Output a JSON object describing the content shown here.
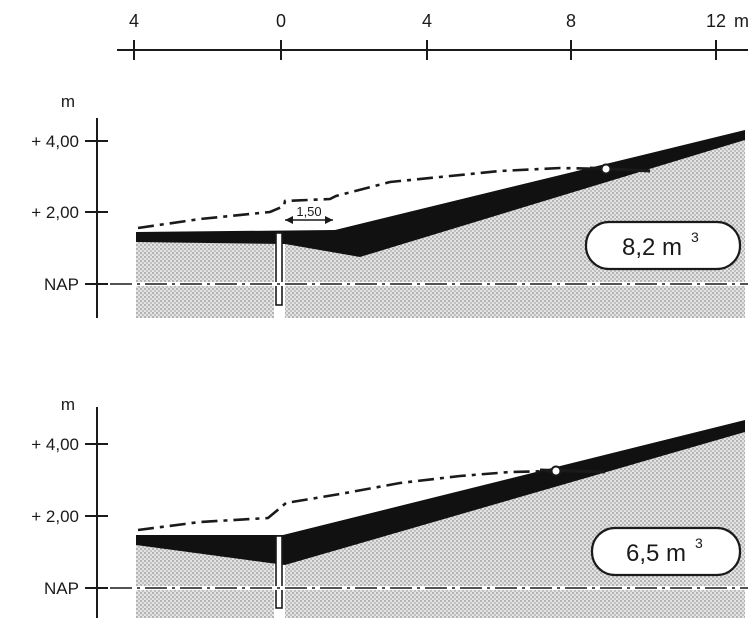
{
  "scale": {
    "ticks": [
      "4",
      "0",
      "4",
      "8",
      "12"
    ],
    "unit": "m"
  },
  "panels": [
    {
      "id": "top",
      "axis_unit": "m",
      "y_labels": [
        "+ 4,00",
        "+ 2,00",
        "NAP"
      ],
      "dimension_label": "1,50",
      "volume_value": "8,2 m",
      "volume_exp": "3"
    },
    {
      "id": "bottom",
      "axis_unit": "m",
      "y_labels": [
        "+ 4,00",
        "+ 2,00",
        "NAP"
      ],
      "volume_value": "6,5 m",
      "volume_exp": "3"
    }
  ],
  "colors": {
    "ink": "#1a1a1a",
    "ground_fill": "#d9d9d9",
    "nourishment_fill": "#111111"
  }
}
